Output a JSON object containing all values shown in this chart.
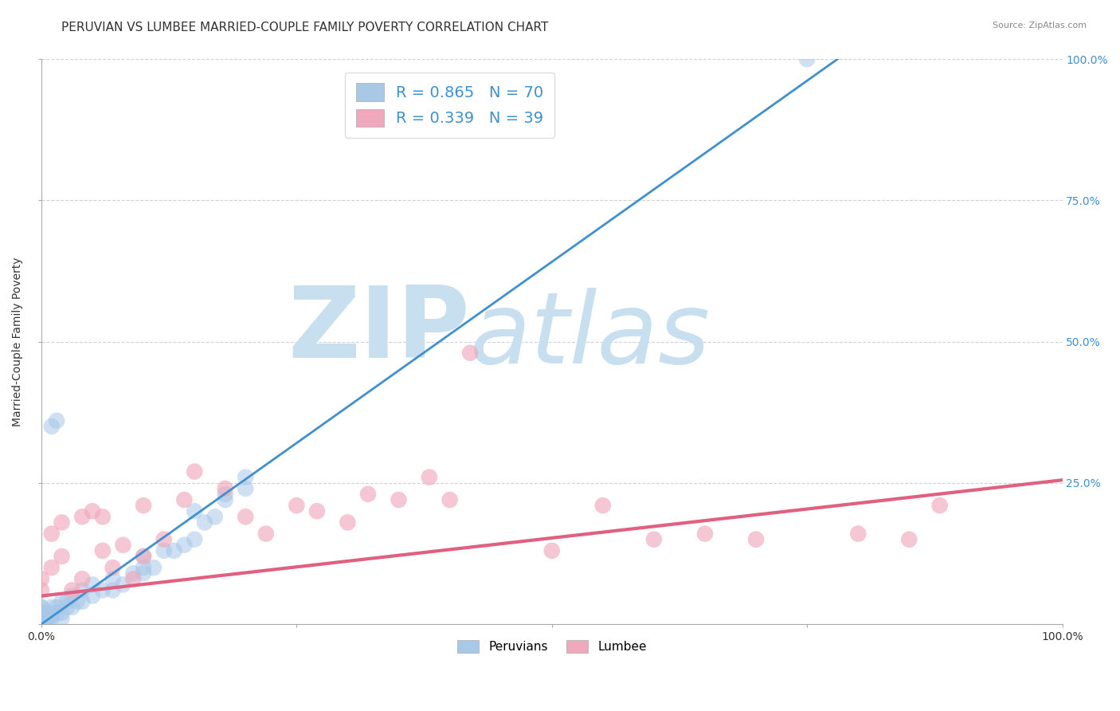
{
  "title": "PERUVIAN VS LUMBEE MARRIED-COUPLE FAMILY POVERTY CORRELATION CHART",
  "source": "Source: ZipAtlas.com",
  "ylabel": "Married-Couple Family Poverty",
  "xlim": [
    0,
    1
  ],
  "ylim": [
    0,
    1
  ],
  "peruvian_color": "#A8C8E8",
  "lumbee_color": "#F0A8BC",
  "peruvian_line_color": "#4090D0",
  "lumbee_line_color": "#E06080",
  "peruvian_R": 0.865,
  "peruvian_N": 70,
  "lumbee_R": 0.339,
  "lumbee_N": 39,
  "watermark_zip": "ZIP",
  "watermark_atlas": "atlas",
  "watermark_color": "#C8DFF0",
  "background_color": "#FFFFFF",
  "legend_text_color": "#4090D0",
  "title_fontsize": 11,
  "axis_label_fontsize": 10,
  "tick_fontsize": 10,
  "peruvian_line_x0": 0.0,
  "peruvian_line_y0": 0.0,
  "peruvian_line_x1": 0.78,
  "peruvian_line_y1": 1.0,
  "lumbee_line_x0": 0.0,
  "lumbee_line_y0": 0.05,
  "lumbee_line_x1": 1.0,
  "lumbee_line_y1": 0.255,
  "peru_x": [
    0.0,
    0.0,
    0.0,
    0.0,
    0.0,
    0.0,
    0.0,
    0.0,
    0.0,
    0.0,
    0.0,
    0.0,
    0.0,
    0.0,
    0.0,
    0.0,
    0.0,
    0.0,
    0.0,
    0.0,
    0.0,
    0.0,
    0.0,
    0.0,
    0.0,
    0.005,
    0.005,
    0.005,
    0.005,
    0.01,
    0.01,
    0.01,
    0.01,
    0.015,
    0.015,
    0.02,
    0.02,
    0.02,
    0.025,
    0.025,
    0.03,
    0.03,
    0.035,
    0.04,
    0.04,
    0.05,
    0.05,
    0.06,
    0.07,
    0.07,
    0.08,
    0.09,
    0.1,
    0.1,
    0.1,
    0.11,
    0.12,
    0.13,
    0.14,
    0.15,
    0.15,
    0.16,
    0.17,
    0.18,
    0.18,
    0.2,
    0.01,
    0.015,
    0.75,
    0.2
  ],
  "peru_y": [
    0.0,
    0.0,
    0.0,
    0.0,
    0.0,
    0.0,
    0.0,
    0.0,
    0.0,
    0.0,
    0.0,
    0.0,
    0.0,
    0.0,
    0.0,
    0.0,
    0.005,
    0.005,
    0.01,
    0.01,
    0.01,
    0.02,
    0.02,
    0.03,
    0.03,
    0.0,
    0.005,
    0.01,
    0.015,
    0.01,
    0.015,
    0.02,
    0.03,
    0.02,
    0.03,
    0.01,
    0.02,
    0.04,
    0.03,
    0.04,
    0.03,
    0.05,
    0.04,
    0.04,
    0.06,
    0.05,
    0.07,
    0.06,
    0.06,
    0.08,
    0.07,
    0.09,
    0.09,
    0.1,
    0.12,
    0.1,
    0.13,
    0.13,
    0.14,
    0.15,
    0.2,
    0.18,
    0.19,
    0.22,
    0.23,
    0.24,
    0.35,
    0.36,
    1.0,
    0.26
  ],
  "lumbee_x": [
    0.0,
    0.0,
    0.01,
    0.01,
    0.02,
    0.02,
    0.03,
    0.04,
    0.04,
    0.05,
    0.06,
    0.06,
    0.07,
    0.08,
    0.09,
    0.1,
    0.1,
    0.12,
    0.14,
    0.15,
    0.18,
    0.2,
    0.22,
    0.25,
    0.27,
    0.3,
    0.32,
    0.35,
    0.38,
    0.4,
    0.42,
    0.5,
    0.55,
    0.6,
    0.65,
    0.7,
    0.8,
    0.85,
    0.88
  ],
  "lumbee_y": [
    0.06,
    0.08,
    0.1,
    0.16,
    0.12,
    0.18,
    0.06,
    0.08,
    0.19,
    0.2,
    0.13,
    0.19,
    0.1,
    0.14,
    0.08,
    0.12,
    0.21,
    0.15,
    0.22,
    0.27,
    0.24,
    0.19,
    0.16,
    0.21,
    0.2,
    0.18,
    0.23,
    0.22,
    0.26,
    0.22,
    0.48,
    0.13,
    0.21,
    0.15,
    0.16,
    0.15,
    0.16,
    0.15,
    0.21
  ]
}
